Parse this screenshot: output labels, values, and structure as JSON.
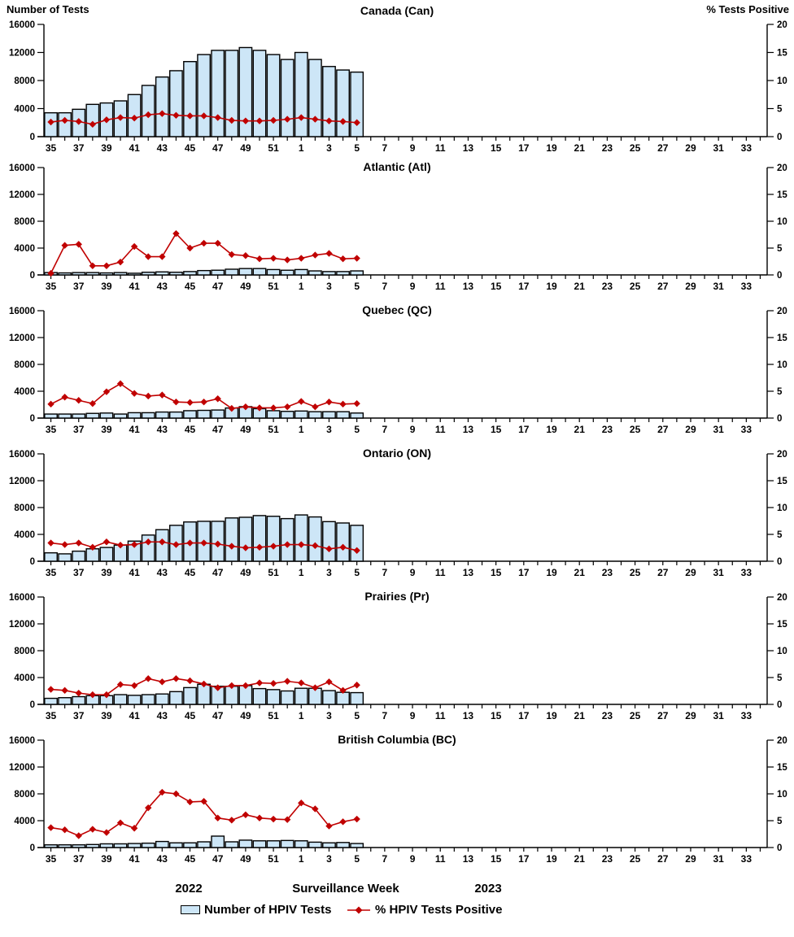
{
  "header": {
    "left_axis_title": "Number of Tests",
    "right_axis_title": "% Tests Positive"
  },
  "colors": {
    "bar_fill": "#CDE6F7",
    "bar_stroke": "#000000",
    "line": "#C00000",
    "text": "#000000"
  },
  "x_axis": {
    "year_left": "2022",
    "title": "Surveillance Week",
    "year_right": "2023",
    "weeks": [
      35,
      36,
      37,
      38,
      39,
      40,
      41,
      42,
      43,
      44,
      45,
      46,
      47,
      48,
      49,
      50,
      51,
      52,
      1,
      2,
      3,
      4,
      5,
      6,
      7,
      8,
      9,
      10,
      11,
      12,
      13,
      14,
      15,
      16,
      17,
      18,
      19,
      20,
      21,
      22,
      23,
      24,
      25,
      26,
      27,
      28,
      29,
      30,
      31,
      32,
      33,
      34
    ]
  },
  "y_left": {
    "title": "Number of Tests",
    "min": 0,
    "max": 16000,
    "ticks": [
      0,
      4000,
      8000,
      12000,
      16000
    ]
  },
  "y_right": {
    "title": "% Tests Positive",
    "min": 0,
    "max": 20,
    "ticks": [
      0,
      5,
      10,
      15,
      20
    ]
  },
  "legend": {
    "items": [
      {
        "label": "Number of HPIV Tests",
        "type": "bar"
      },
      {
        "label": "% HPIV Tests Positive",
        "type": "line"
      }
    ]
  },
  "chart_data": [
    {
      "type": "bar+line",
      "title": "Canada (Can)",
      "categories": [
        "35",
        "36",
        "37",
        "38",
        "39",
        "40",
        "41",
        "42",
        "43",
        "44",
        "45",
        "46",
        "47",
        "48",
        "49",
        "50",
        "51",
        "52",
        "1",
        "2",
        "3",
        "4",
        "5"
      ],
      "series": [
        {
          "name": "Number of HPIV Tests",
          "type": "bar",
          "axis": "left",
          "values": [
            3400,
            3400,
            3900,
            4600,
            4800,
            5100,
            6000,
            7300,
            8500,
            9400,
            10700,
            11700,
            12300,
            12300,
            12700,
            12300,
            11700,
            11000,
            12000,
            11000,
            10000,
            9500,
            9200
          ]
        },
        {
          "name": "% HPIV Tests Positive",
          "type": "line",
          "axis": "right",
          "values": [
            2.6,
            2.9,
            2.7,
            2.2,
            3.0,
            3.4,
            3.3,
            3.9,
            4.1,
            3.8,
            3.7,
            3.7,
            3.4,
            2.9,
            2.8,
            2.8,
            2.9,
            3.1,
            3.4,
            3.1,
            2.8,
            2.7,
            2.5
          ]
        }
      ],
      "ylim_left": [
        0,
        16000
      ],
      "ylim_right": [
        0,
        20
      ]
    },
    {
      "type": "bar+line",
      "title": "Atlantic (Atl)",
      "categories": [
        "35",
        "36",
        "37",
        "38",
        "39",
        "40",
        "41",
        "42",
        "43",
        "44",
        "45",
        "46",
        "47",
        "48",
        "49",
        "50",
        "51",
        "52",
        "1",
        "2",
        "3",
        "4",
        "5"
      ],
      "series": [
        {
          "name": "Number of HPIV Tests",
          "type": "bar",
          "axis": "left",
          "values": [
            350,
            300,
            350,
            350,
            300,
            350,
            250,
            400,
            450,
            400,
            500,
            650,
            700,
            850,
            950,
            950,
            800,
            700,
            800,
            600,
            500,
            500,
            600
          ]
        },
        {
          "name": "% HPIV Tests Positive",
          "type": "line",
          "axis": "right",
          "values": [
            0.3,
            5.5,
            5.7,
            1.7,
            1.7,
            2.4,
            5.3,
            3.4,
            3.4,
            7.7,
            5.0,
            5.9,
            5.9,
            3.8,
            3.6,
            3.0,
            3.1,
            2.8,
            3.1,
            3.7,
            4.0,
            3.0,
            3.1
          ]
        }
      ],
      "ylim_left": [
        0,
        16000
      ],
      "ylim_right": [
        0,
        20
      ]
    },
    {
      "type": "bar+line",
      "title": "Quebec (QC)",
      "categories": [
        "35",
        "36",
        "37",
        "38",
        "39",
        "40",
        "41",
        "42",
        "43",
        "44",
        "45",
        "46",
        "47",
        "48",
        "49",
        "50",
        "51",
        "52",
        "1",
        "2",
        "3",
        "4",
        "5"
      ],
      "series": [
        {
          "name": "Number of HPIV Tests",
          "type": "bar",
          "axis": "left",
          "values": [
            600,
            600,
            600,
            700,
            750,
            600,
            800,
            800,
            900,
            900,
            1100,
            1150,
            1200,
            1500,
            1700,
            1400,
            1100,
            1000,
            1050,
            950,
            950,
            950,
            750
          ]
        },
        {
          "name": "% HPIV Tests Positive",
          "type": "line",
          "axis": "right",
          "values": [
            2.6,
            3.9,
            3.3,
            2.7,
            4.9,
            6.4,
            4.6,
            4.1,
            4.3,
            3.0,
            2.9,
            3.0,
            3.6,
            1.8,
            2.1,
            1.9,
            1.9,
            2.1,
            3.1,
            2.1,
            3.0,
            2.6,
            2.7
          ]
        }
      ],
      "ylim_left": [
        0,
        16000
      ],
      "ylim_right": [
        0,
        20
      ]
    },
    {
      "type": "bar+line",
      "title": "Ontario (ON)",
      "categories": [
        "35",
        "36",
        "37",
        "38",
        "39",
        "40",
        "41",
        "42",
        "43",
        "44",
        "45",
        "46",
        "47",
        "48",
        "49",
        "50",
        "51",
        "52",
        "1",
        "2",
        "3",
        "4",
        "5"
      ],
      "series": [
        {
          "name": "Number of HPIV Tests",
          "type": "bar",
          "axis": "left",
          "values": [
            1250,
            1100,
            1500,
            1850,
            2050,
            2400,
            3000,
            3900,
            4700,
            5350,
            5850,
            5950,
            5950,
            6450,
            6550,
            6800,
            6700,
            6350,
            6900,
            6600,
            5900,
            5700,
            5350
          ]
        },
        {
          "name": "% HPIV Tests Positive",
          "type": "line",
          "axis": "right",
          "values": [
            3.4,
            3.1,
            3.4,
            2.6,
            3.6,
            3.0,
            3.1,
            3.6,
            3.6,
            3.1,
            3.4,
            3.4,
            3.2,
            2.8,
            2.5,
            2.6,
            2.8,
            3.1,
            3.1,
            2.9,
            2.3,
            2.6,
            2.0
          ]
        }
      ],
      "ylim_left": [
        0,
        16000
      ],
      "ylim_right": [
        0,
        20
      ]
    },
    {
      "type": "bar+line",
      "title": "Prairies (Pr)",
      "categories": [
        "35",
        "36",
        "37",
        "38",
        "39",
        "40",
        "41",
        "42",
        "43",
        "44",
        "45",
        "46",
        "47",
        "48",
        "49",
        "50",
        "51",
        "52",
        "1",
        "2",
        "3",
        "4",
        "5"
      ],
      "series": [
        {
          "name": "Number of HPIV Tests",
          "type": "bar",
          "axis": "left",
          "values": [
            900,
            1000,
            1150,
            1300,
            1300,
            1450,
            1350,
            1450,
            1550,
            1900,
            2500,
            3000,
            2700,
            2700,
            2800,
            2350,
            2200,
            2000,
            2400,
            2400,
            2050,
            1800,
            1750
          ]
        },
        {
          "name": "% HPIV Tests Positive",
          "type": "line",
          "axis": "right",
          "values": [
            2.8,
            2.6,
            2.1,
            1.8,
            1.8,
            3.7,
            3.5,
            4.8,
            4.2,
            4.8,
            4.4,
            3.8,
            3.1,
            3.5,
            3.5,
            4.0,
            3.9,
            4.3,
            4.0,
            3.1,
            4.2,
            2.6,
            3.6
          ]
        }
      ],
      "ylim_left": [
        0,
        16000
      ],
      "ylim_right": [
        0,
        20
      ]
    },
    {
      "type": "bar+line",
      "title": "British Columbia (BC)",
      "categories": [
        "35",
        "36",
        "37",
        "38",
        "39",
        "40",
        "41",
        "42",
        "43",
        "44",
        "45",
        "46",
        "47",
        "48",
        "49",
        "50",
        "51",
        "52",
        "1",
        "2",
        "3",
        "4",
        "5"
      ],
      "series": [
        {
          "name": "Number of HPIV Tests",
          "type": "bar",
          "axis": "left",
          "values": [
            400,
            400,
            400,
            450,
            550,
            550,
            600,
            650,
            900,
            700,
            700,
            850,
            1700,
            850,
            1100,
            1000,
            1000,
            1050,
            1000,
            800,
            700,
            750,
            600
          ]
        },
        {
          "name": "% HPIV Tests Positive",
          "type": "line",
          "axis": "right",
          "values": [
            3.7,
            3.3,
            2.2,
            3.4,
            2.8,
            4.6,
            3.6,
            7.4,
            10.3,
            10.0,
            8.5,
            8.6,
            5.5,
            5.1,
            6.1,
            5.5,
            5.3,
            5.2,
            8.3,
            7.2,
            4.0,
            4.8,
            5.3
          ]
        }
      ],
      "ylim_left": [
        0,
        16000
      ],
      "ylim_right": [
        0,
        20
      ]
    }
  ]
}
